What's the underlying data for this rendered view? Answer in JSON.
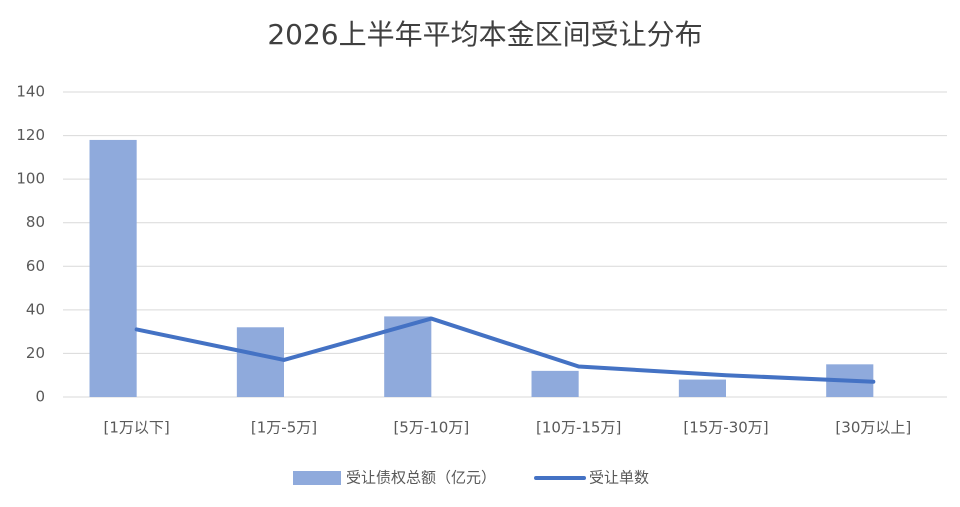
{
  "chart_data": {
    "type": "bar",
    "title": "2026上半年平均本金区间受让分布",
    "categories": [
      "[1万以下]",
      "[1万-5万]",
      "[5万-10万]",
      "[10万-15万]",
      "[15万-30万]",
      "[30万以上]"
    ],
    "series": [
      {
        "name": "受让债权总额（亿元）",
        "type": "bar",
        "color": "#8faadc",
        "values": [
          118,
          32,
          37,
          12,
          8,
          15
        ]
      },
      {
        "name": "受让单数",
        "type": "line",
        "color": "#4472c4",
        "values": [
          31,
          17,
          36,
          14,
          10,
          7
        ]
      }
    ],
    "ylim": [
      0,
      140
    ],
    "yticks": [
      0,
      20,
      40,
      60,
      80,
      100,
      120,
      140
    ],
    "grid": true,
    "legend": "bottom"
  }
}
